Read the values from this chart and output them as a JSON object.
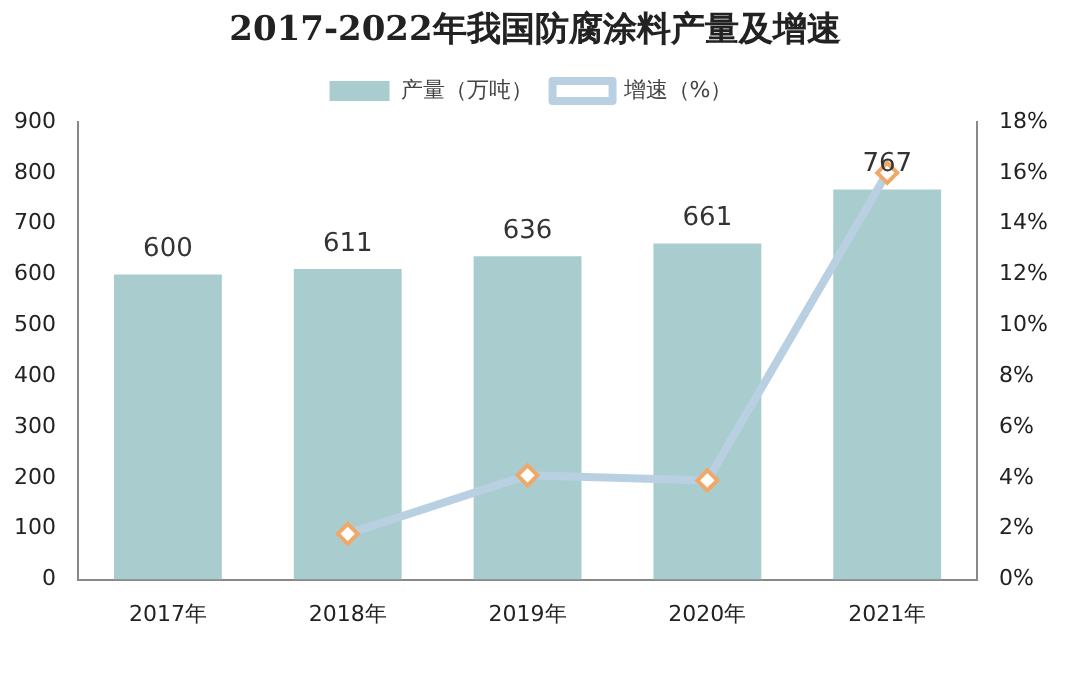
{
  "chart_data": {
    "type": "bar",
    "title": "2017-2022年我国防腐涂料产量及增速",
    "categories": [
      "2017年",
      "2018年",
      "2019年",
      "2020年",
      "2021年"
    ],
    "series": [
      {
        "name": "产量（万吨）",
        "color": "#a9cdcf",
        "values": [
          600,
          611,
          636,
          661,
          767
        ],
        "value_labels": [
          "600",
          "611",
          "636",
          "661",
          "767"
        ]
      },
      {
        "name": "增速（%）",
        "type": "line",
        "axis": "y2",
        "color": "#b9d0e3",
        "values": [
          null,
          1.8,
          4.1,
          3.9,
          16.0
        ]
      }
    ],
    "ylim": [
      0,
      900
    ],
    "yticks": [
      0,
      100,
      200,
      300,
      400,
      500,
      600,
      700,
      800,
      900
    ],
    "y2lim": [
      0,
      18
    ],
    "y2ticks": [
      {
        "value": 0,
        "label": "0%"
      },
      {
        "value": 2,
        "label": "2%"
      },
      {
        "value": 4,
        "label": "4%"
      },
      {
        "value": 6,
        "label": "6%"
      },
      {
        "value": 8,
        "label": "8%"
      },
      {
        "value": 10,
        "label": "10%"
      },
      {
        "value": 12,
        "label": "12%"
      },
      {
        "value": 14,
        "label": "14%"
      },
      {
        "value": 16,
        "label": "16%"
      },
      {
        "value": 18,
        "label": "18%"
      }
    ],
    "grid": false,
    "legend": "top",
    "marker": "diamond",
    "line_style": "solid"
  }
}
